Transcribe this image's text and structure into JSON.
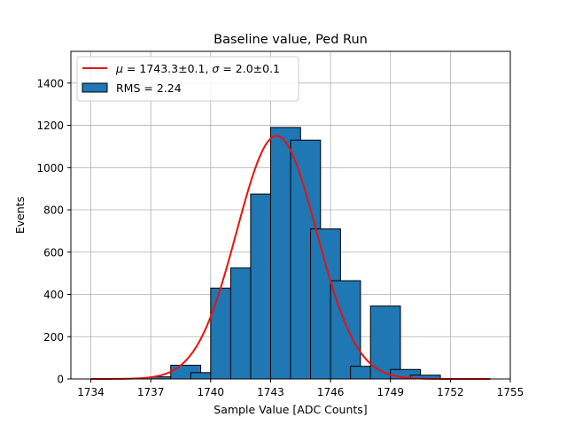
{
  "chart_data": {
    "type": "bar",
    "title": "Baseline value, Ped Run",
    "xlabel": "Sample Value [ADC Counts]",
    "ylabel": "Events",
    "xlim": [
      1733,
      1755
    ],
    "ylim": [
      0,
      1550
    ],
    "xticks": [
      1734,
      1737,
      1740,
      1743,
      1746,
      1749,
      1752,
      1755
    ],
    "yticks": [
      0,
      200,
      400,
      600,
      800,
      1000,
      1200,
      1400
    ],
    "grid": true,
    "legend_position": "top-left",
    "histogram": {
      "name": "RMS = 2.24",
      "color": "#1f77b4",
      "edgecolor": "#000000",
      "bin_width": 1.5,
      "bins": [
        {
          "x0": 1737.0,
          "value": 10
        },
        {
          "x0": 1738.0,
          "value": 65
        },
        {
          "x0": 1739.0,
          "value": 30
        },
        {
          "x0": 1740.0,
          "value": 430
        },
        {
          "x0": 1741.0,
          "value": 525
        },
        {
          "x0": 1742.0,
          "value": 875
        },
        {
          "x0": 1743.0,
          "value": 1190
        },
        {
          "x0": 1744.0,
          "value": 1130
        },
        {
          "x0": 1745.0,
          "value": 710
        },
        {
          "x0": 1746.0,
          "value": 465
        },
        {
          "x0": 1747.0,
          "value": 60
        },
        {
          "x0": 1748.0,
          "value": 345
        },
        {
          "x0": 1749.0,
          "value": 45
        },
        {
          "x0": 1750.0,
          "value": 18
        }
      ]
    },
    "fit": {
      "name": "μ = 1743.3±0.1, σ = 2.0±0.1",
      "name_parts": {
        "mu_sym": "μ",
        "mu_val": " = 1743.3±0.1, ",
        "sigma_sym": "σ",
        "sigma_val": " = 2.0±0.1"
      },
      "color": "#e8120c",
      "mu": 1743.3,
      "sigma": 2.0,
      "amplitude": 1150,
      "x_range": [
        1734,
        1754
      ]
    }
  }
}
